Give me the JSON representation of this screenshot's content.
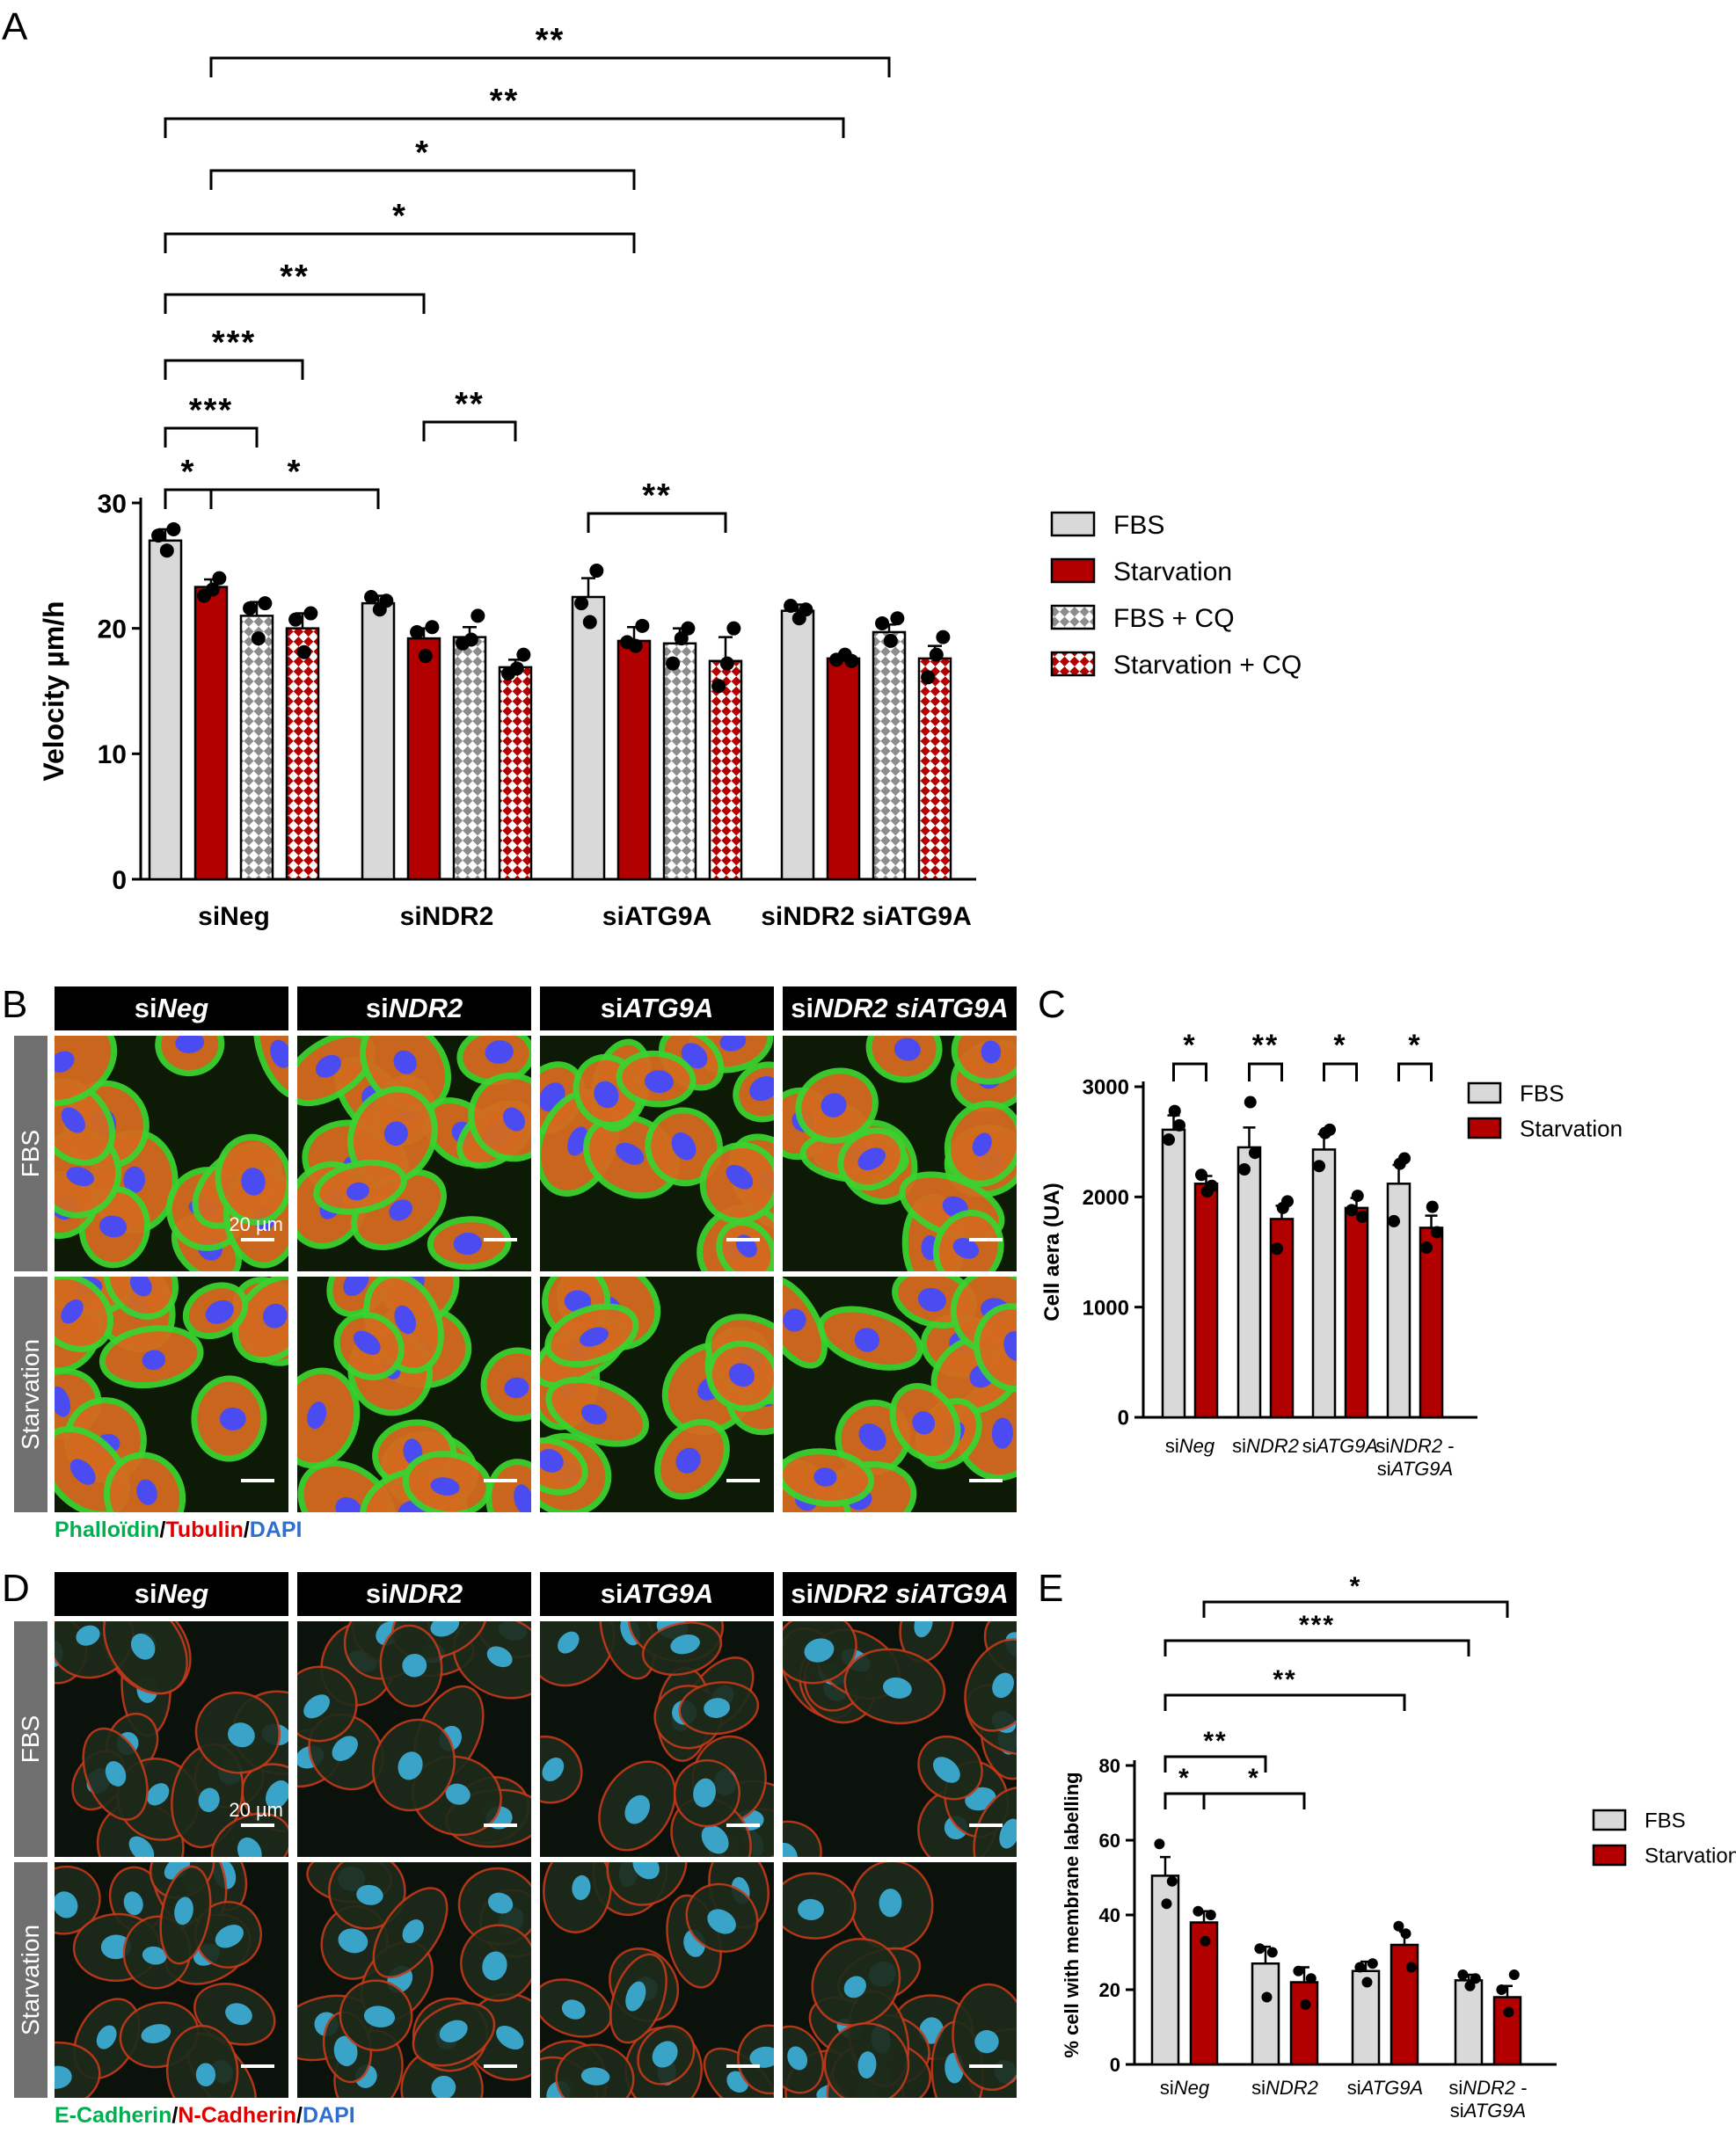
{
  "panels": {
    "a": "A",
    "b": "B",
    "c": "C",
    "d": "D",
    "e": "E"
  },
  "colors": {
    "fbs": "#d9d9d9",
    "starvation": "#b20000",
    "green": "#00b050",
    "red": "#e00000",
    "blue": "#2f6fd0"
  },
  "micro_groups": [
    {
      "pre": "si",
      "name": "Neg"
    },
    {
      "pre": "si",
      "name": "NDR2"
    },
    {
      "pre": "si",
      "name": "ATG9A"
    },
    {
      "pre": "si",
      "name": "NDR2 siATG9A"
    }
  ],
  "micro_rows": [
    "FBS",
    "Starvation"
  ],
  "scale_label": "20 µm",
  "caption_b": [
    "Phalloïdin",
    "/",
    "Tubulin",
    "/",
    "DAPI"
  ],
  "caption_d": [
    "E-Cadherin",
    "/",
    "N-Cadherin",
    "/",
    "DAPI"
  ],
  "chart_data": [
    {
      "id": "A",
      "type": "bar",
      "ylabel": "Velocity µm/h",
      "ylim": [
        0,
        30
      ],
      "yticks": [
        0,
        10,
        20,
        30
      ],
      "groups": [
        "siNeg",
        "siNDR2",
        "siATG9A",
        "siNDR2 siATG9A"
      ],
      "series": [
        {
          "name": "FBS",
          "values": [
            27.0,
            22.0,
            22.5,
            21.4
          ],
          "err": [
            0.9,
            0.6,
            1.5,
            0.5
          ],
          "points": [
            [
              27.4,
              26.2,
              27.9
            ],
            [
              22.5,
              21.5,
              22.2
            ],
            [
              22.0,
              20.5,
              24.6
            ],
            [
              21.8,
              20.8,
              21.5
            ]
          ]
        },
        {
          "name": "Starvation",
          "values": [
            23.3,
            19.2,
            19.0,
            17.6
          ],
          "err": [
            0.6,
            0.8,
            1.1,
            0.3
          ],
          "points": [
            [
              22.6,
              23.1,
              24.0
            ],
            [
              19.7,
              17.8,
              20.1
            ],
            [
              18.9,
              18.6,
              20.2
            ],
            [
              17.5,
              17.9,
              17.4
            ]
          ]
        },
        {
          "name": "FBS + CQ",
          "values": [
            21.0,
            19.3,
            18.8,
            19.7
          ],
          "err": [
            1.1,
            0.8,
            1.2,
            0.6
          ],
          "points": [
            [
              21.6,
              19.2,
              22.0
            ],
            [
              18.8,
              19.1,
              21.0
            ],
            [
              17.2,
              19.2,
              20.0
            ],
            [
              20.4,
              19.0,
              20.8
            ]
          ]
        },
        {
          "name": "Starvation + CQ",
          "values": [
            20.0,
            16.9,
            17.4,
            17.6
          ],
          "err": [
            1.2,
            0.6,
            1.9,
            1.0
          ],
          "points": [
            [
              20.7,
              18.1,
              21.2
            ],
            [
              16.4,
              16.8,
              17.9
            ],
            [
              15.4,
              17.2,
              20.0
            ],
            [
              16.1,
              17.9,
              19.3
            ]
          ]
        }
      ],
      "legend": "right",
      "significance": [
        {
          "from": [
            0,
            0
          ],
          "to": [
            0,
            1
          ],
          "label": "*"
        },
        {
          "from": [
            0,
            1
          ],
          "to": [
            1,
            0
          ],
          "label": "*"
        },
        {
          "from": [
            0,
            0
          ],
          "to": [
            0,
            2
          ],
          "label": "***"
        },
        {
          "from": [
            1,
            1
          ],
          "to": [
            1,
            3
          ],
          "label": "**"
        },
        {
          "from": [
            0,
            0
          ],
          "to": [
            0,
            3
          ],
          "label": "***"
        },
        {
          "from": [
            0,
            0
          ],
          "to": [
            1,
            1
          ],
          "label": "**"
        },
        {
          "from": [
            0,
            0
          ],
          "to": [
            2,
            1
          ],
          "label": "*"
        },
        {
          "from": [
            0,
            1
          ],
          "to": [
            2,
            1
          ],
          "label": "*"
        },
        {
          "from": [
            0,
            0
          ],
          "to": [
            3,
            1
          ],
          "label": "**"
        },
        {
          "from": [
            0,
            1
          ],
          "to": [
            3,
            2
          ],
          "label": "**"
        },
        {
          "from": [
            2,
            0
          ],
          "to": [
            2,
            3
          ],
          "label": "**"
        }
      ]
    },
    {
      "id": "C",
      "type": "bar",
      "ylabel": "Cell aera (UA)",
      "ylim": [
        0,
        3000
      ],
      "yticks": [
        0,
        1000,
        2000,
        3000
      ],
      "groups": [
        {
          "lines": [
            [
              {
                "t": "si",
                "i": false
              },
              {
                "t": "Neg",
                "i": true
              }
            ]
          ]
        },
        {
          "lines": [
            [
              {
                "t": "si",
                "i": false
              },
              {
                "t": "NDR2",
                "i": true
              }
            ]
          ]
        },
        {
          "lines": [
            [
              {
                "t": "si",
                "i": false
              },
              {
                "t": "ATG9A",
                "i": true
              }
            ]
          ]
        },
        {
          "lines": [
            [
              {
                "t": "si",
                "i": false
              },
              {
                "t": "NDR2",
                "i": true
              },
              {
                "t": " -",
                "i": false
              }
            ],
            [
              {
                "t": "si",
                "i": false
              },
              {
                "t": "ATG9A",
                "i": true
              }
            ]
          ]
        }
      ],
      "series": [
        {
          "name": "FBS",
          "values": [
            2610,
            2450,
            2430,
            2120
          ],
          "err": [
            130,
            180,
            140,
            170
          ],
          "points": [
            [
              2520,
              2780,
              2650
            ],
            [
              2250,
              2860,
              2400
            ],
            [
              2280,
              2580,
              2610
            ],
            [
              1780,
              2300,
              2350
            ]
          ]
        },
        {
          "name": "Starvation",
          "values": [
            2120,
            1800,
            1900,
            1720
          ],
          "err": [
            70,
            120,
            90,
            110
          ],
          "points": [
            [
              2200,
              2050,
              2100
            ],
            [
              1530,
              1900,
              1960
            ],
            [
              1880,
              2010,
              1820
            ],
            [
              1540,
              1910,
              1680
            ]
          ]
        }
      ],
      "legend": "right",
      "significance": [
        {
          "group": 0,
          "label": "*"
        },
        {
          "group": 1,
          "label": "**"
        },
        {
          "group": 2,
          "label": "*"
        },
        {
          "group": 3,
          "label": "*"
        }
      ]
    },
    {
      "id": "E",
      "type": "bar",
      "ylabel": "% cell with membrane labelling",
      "ylim": [
        0,
        80
      ],
      "yticks": [
        0,
        20,
        40,
        60,
        80
      ],
      "groups": [
        {
          "lines": [
            [
              {
                "t": "si",
                "i": false
              },
              {
                "t": "Neg",
                "i": true
              }
            ]
          ]
        },
        {
          "lines": [
            [
              {
                "t": "si",
                "i": false
              },
              {
                "t": "NDR2",
                "i": true
              }
            ]
          ]
        },
        {
          "lines": [
            [
              {
                "t": "si",
                "i": false
              },
              {
                "t": "ATG9A",
                "i": true
              }
            ]
          ]
        },
        {
          "lines": [
            [
              {
                "t": "si",
                "i": false
              },
              {
                "t": "NDR2",
                "i": true
              },
              {
                "t": " -",
                "i": false
              }
            ],
            [
              {
                "t": "si",
                "i": false
              },
              {
                "t": "ATG9A",
                "i": true
              }
            ]
          ]
        }
      ],
      "series": [
        {
          "name": "FBS",
          "values": [
            50.5,
            27.0,
            25.0,
            22.5
          ],
          "err": [
            5.0,
            4.5,
            2.5,
            1.5
          ],
          "points": [
            [
              59,
              43,
              49
            ],
            [
              31,
              18,
              30
            ],
            [
              26,
              22,
              27
            ],
            [
              24,
              21,
              23
            ]
          ]
        },
        {
          "name": "Starvation",
          "values": [
            38.0,
            22.0,
            32.0,
            18.0
          ],
          "err": [
            3.0,
            4.0,
            3.5,
            3.0
          ],
          "points": [
            [
              41,
              33,
              40
            ],
            [
              25,
              16,
              23
            ],
            [
              37,
              35,
              26
            ],
            [
              20,
              14,
              24
            ]
          ]
        }
      ],
      "legend": "right",
      "significance": [
        {
          "from": [
            0,
            0
          ],
          "to": [
            0,
            1
          ],
          "label": "*"
        },
        {
          "from": [
            0,
            1
          ],
          "to": [
            1,
            1
          ],
          "label": "*"
        },
        {
          "from": [
            0,
            0
          ],
          "to": [
            1,
            0
          ],
          "label": "**"
        },
        {
          "from": [
            0,
            0
          ],
          "to": [
            2,
            1
          ],
          "label": "**"
        },
        {
          "from": [
            0,
            0
          ],
          "to": [
            3,
            0
          ],
          "label": "***"
        },
        {
          "from": [
            0,
            1
          ],
          "to": [
            3,
            1
          ],
          "label": "*"
        }
      ]
    }
  ]
}
